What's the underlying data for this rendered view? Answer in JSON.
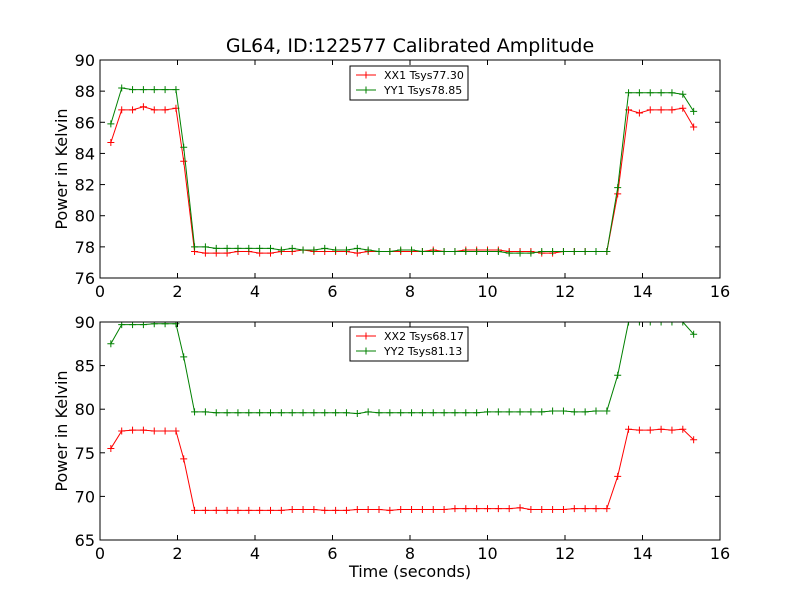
{
  "title": "GL64, ID:122577 Calibrated Amplitude",
  "chart_data": [
    {
      "type": "line",
      "title": "GL64, ID:122577 Calibrated Amplitude",
      "xlabel": "",
      "ylabel": "Power in Kelvin",
      "xlim": [
        0,
        16
      ],
      "ylim": [
        76,
        90
      ],
      "xticks": [
        "0",
        "2",
        "4",
        "6",
        "8",
        "10",
        "12",
        "14",
        "16"
      ],
      "yticks": [
        "76",
        "78",
        "80",
        "82",
        "84",
        "86",
        "88",
        "90"
      ],
      "grid": false,
      "legend_position": "top-center",
      "x": [
        0.28,
        0.56,
        0.84,
        1.12,
        1.4,
        1.68,
        1.96,
        2.16,
        2.44,
        2.72,
        3.0,
        3.28,
        3.56,
        3.84,
        4.12,
        4.4,
        4.68,
        4.96,
        5.24,
        5.52,
        5.8,
        6.08,
        6.36,
        6.64,
        6.92,
        7.2,
        7.48,
        7.76,
        8.04,
        8.32,
        8.6,
        8.88,
        9.16,
        9.44,
        9.72,
        10.0,
        10.28,
        10.56,
        10.84,
        11.12,
        11.4,
        11.68,
        11.96,
        12.24,
        12.52,
        12.8,
        13.08,
        13.36,
        13.64,
        13.92,
        14.2,
        14.48,
        14.76,
        15.04,
        15.32
      ],
      "series": [
        {
          "name": "XX1 Tsys77.30",
          "color": "#ff0000",
          "values": [
            84.7,
            86.8,
            86.8,
            87.0,
            86.8,
            86.8,
            86.9,
            83.5,
            77.7,
            77.6,
            77.6,
            77.6,
            77.7,
            77.7,
            77.6,
            77.6,
            77.7,
            77.7,
            77.8,
            77.7,
            77.7,
            77.7,
            77.7,
            77.6,
            77.7,
            77.7,
            77.7,
            77.7,
            77.7,
            77.7,
            77.8,
            77.7,
            77.7,
            77.8,
            77.8,
            77.8,
            77.8,
            77.7,
            77.7,
            77.7,
            77.6,
            77.6,
            77.7,
            77.7,
            77.7,
            77.7,
            77.7,
            81.4,
            86.8,
            86.6,
            86.8,
            86.8,
            86.8,
            86.9,
            85.7
          ]
        },
        {
          "name": "YY1 Tsys78.85",
          "color": "#008000",
          "values": [
            85.9,
            88.2,
            88.1,
            88.1,
            88.1,
            88.1,
            88.1,
            84.4,
            78.0,
            78.0,
            77.9,
            77.9,
            77.9,
            77.9,
            77.9,
            77.9,
            77.8,
            77.9,
            77.8,
            77.8,
            77.9,
            77.8,
            77.8,
            77.9,
            77.8,
            77.7,
            77.7,
            77.8,
            77.8,
            77.7,
            77.7,
            77.7,
            77.7,
            77.7,
            77.7,
            77.7,
            77.7,
            77.6,
            77.6,
            77.6,
            77.7,
            77.7,
            77.7,
            77.7,
            77.7,
            77.7,
            77.7,
            81.8,
            87.9,
            87.9,
            87.9,
            87.9,
            87.9,
            87.8,
            86.7
          ]
        }
      ]
    },
    {
      "type": "line",
      "title": "",
      "xlabel": "Time (seconds)",
      "ylabel": "Power in Kelvin",
      "xlim": [
        0,
        16
      ],
      "ylim": [
        65,
        90
      ],
      "xticks": [
        "0",
        "2",
        "4",
        "6",
        "8",
        "10",
        "12",
        "14",
        "16"
      ],
      "yticks": [
        "65",
        "70",
        "75",
        "80",
        "85",
        "90"
      ],
      "grid": false,
      "legend_position": "top-center",
      "x": [
        0.28,
        0.56,
        0.84,
        1.12,
        1.4,
        1.68,
        1.96,
        2.16,
        2.44,
        2.72,
        3.0,
        3.28,
        3.56,
        3.84,
        4.12,
        4.4,
        4.68,
        4.96,
        5.24,
        5.52,
        5.8,
        6.08,
        6.36,
        6.64,
        6.92,
        7.2,
        7.48,
        7.76,
        8.04,
        8.32,
        8.6,
        8.88,
        9.16,
        9.44,
        9.72,
        10.0,
        10.28,
        10.56,
        10.84,
        11.12,
        11.4,
        11.68,
        11.96,
        12.24,
        12.52,
        12.8,
        13.08,
        13.36,
        13.64,
        13.92,
        14.2,
        14.48,
        14.76,
        15.04,
        15.32
      ],
      "series": [
        {
          "name": "XX2 Tsys68.17",
          "color": "#ff0000",
          "values": [
            75.5,
            77.5,
            77.6,
            77.6,
            77.5,
            77.5,
            77.5,
            74.3,
            68.4,
            68.4,
            68.4,
            68.4,
            68.4,
            68.4,
            68.4,
            68.4,
            68.4,
            68.5,
            68.5,
            68.5,
            68.4,
            68.4,
            68.4,
            68.5,
            68.5,
            68.5,
            68.4,
            68.5,
            68.5,
            68.5,
            68.5,
            68.5,
            68.6,
            68.6,
            68.6,
            68.6,
            68.6,
            68.6,
            68.7,
            68.5,
            68.5,
            68.5,
            68.5,
            68.6,
            68.6,
            68.6,
            68.6,
            72.3,
            77.7,
            77.6,
            77.6,
            77.7,
            77.6,
            77.7,
            76.5
          ]
        },
        {
          "name": "YY2 Tsys81.13",
          "color": "#008000",
          "values": [
            87.5,
            89.7,
            89.7,
            89.7,
            89.8,
            89.8,
            89.8,
            86.0,
            79.7,
            79.7,
            79.6,
            79.6,
            79.6,
            79.6,
            79.6,
            79.6,
            79.6,
            79.6,
            79.6,
            79.6,
            79.6,
            79.6,
            79.6,
            79.5,
            79.7,
            79.6,
            79.6,
            79.6,
            79.6,
            79.6,
            79.6,
            79.6,
            79.6,
            79.6,
            79.6,
            79.7,
            79.7,
            79.7,
            79.7,
            79.7,
            79.7,
            79.8,
            79.8,
            79.7,
            79.7,
            79.8,
            79.8,
            83.9,
            90.0,
            90.0,
            90.0,
            90.0,
            90.0,
            90.0,
            88.6
          ]
        }
      ]
    }
  ]
}
